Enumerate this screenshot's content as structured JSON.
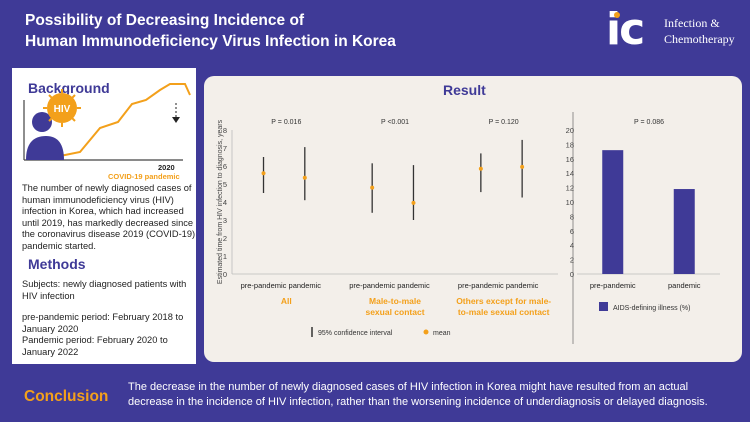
{
  "header": {
    "title_line1": "Possibility of Decreasing Incidence of",
    "title_line2": "Human Immunodeficiency Virus Infection in Korea",
    "logo_mark": "ic",
    "logo_line1": "Infection &",
    "logo_line2": "Chemotherapy"
  },
  "colors": {
    "brand": "#3f3a97",
    "accent": "#f3a01b",
    "panel": "#f3efea"
  },
  "background": {
    "heading": "Background",
    "virus_label": "HIV",
    "year_label": "2020",
    "pandemic_label": "COVID-19 pandemic",
    "text_lines": [
      "The number of newly diagnosed cases of",
      "human immunodeficiency virus (HIV)",
      "infection in Korea, which had increased",
      "until 2019, has markedly decreased since",
      "the coronavirus disease 2019 (COVID-19)",
      "pandemic started."
    ]
  },
  "methods": {
    "heading": "Methods",
    "text_lines": [
      "Subjects: newly diagnosed patients with",
      "HIV infection",
      "",
      "pre-pandemic period: February 2018 to",
      "January 2020",
      "Pandemic period: February 2020 to",
      "January 2022"
    ]
  },
  "result": {
    "heading": "Result"
  },
  "chart_data": [
    {
      "type": "errorbar",
      "ylabel": "Estimated time from HIV infection to diagnosis, years",
      "ylim": [
        0,
        8
      ],
      "yticks": [
        "0",
        "1",
        "2",
        "3",
        "4",
        "5",
        "6",
        "7",
        "8"
      ],
      "groups": [
        {
          "name": "All",
          "name_lines": [
            "All"
          ],
          "p_value": "P = 0.016",
          "points": [
            {
              "category": "pre-pandemic",
              "mean": 5.6,
              "ci_low": 4.5,
              "ci_high": 6.5
            },
            {
              "category": "pandemic",
              "mean": 5.35,
              "ci_low": 4.1,
              "ci_high": 7.05
            }
          ]
        },
        {
          "name": "Male-to-male sexual contact",
          "name_lines": [
            "Male-to-male",
            "sexual contact"
          ],
          "p_value": "P <0.001",
          "points": [
            {
              "category": "pre-pandemic",
              "mean": 4.8,
              "ci_low": 3.4,
              "ci_high": 6.15
            },
            {
              "category": "pandemic",
              "mean": 3.95,
              "ci_low": 3.0,
              "ci_high": 6.05
            }
          ]
        },
        {
          "name": "Others except for male-to-male sexual contact",
          "name_lines": [
            "Others except for male-",
            "to-male sexual contact"
          ],
          "p_value": "P = 0.120",
          "points": [
            {
              "category": "pre-pandemic",
              "mean": 5.85,
              "ci_low": 4.55,
              "ci_high": 6.7
            },
            {
              "category": "pandemic",
              "mean": 5.95,
              "ci_low": 4.25,
              "ci_high": 7.45
            }
          ]
        }
      ],
      "legend": {
        "ci": "95% confidence interval",
        "mean": "mean"
      }
    },
    {
      "type": "bar",
      "p_value": "P = 0.086",
      "categories": [
        "pre-pandemic",
        "pandemic"
      ],
      "values": [
        17.2,
        11.8
      ],
      "ylim": [
        0,
        20
      ],
      "yticks": [
        "0",
        "2",
        "4",
        "6",
        "8",
        "10",
        "12",
        "14",
        "16",
        "18",
        "20"
      ],
      "legend": "AIDS-defining illness (%)"
    }
  ],
  "conclusion": {
    "heading": "Conclusion",
    "text_line1": "The decrease in the number of newly diagnosed cases of HIV infection in Korea might have resulted from an actual",
    "text_line2": "decrease in the incidence of HIV infection, rather than the worsening incidence of underdiagnosis or delayed diagnosis."
  }
}
